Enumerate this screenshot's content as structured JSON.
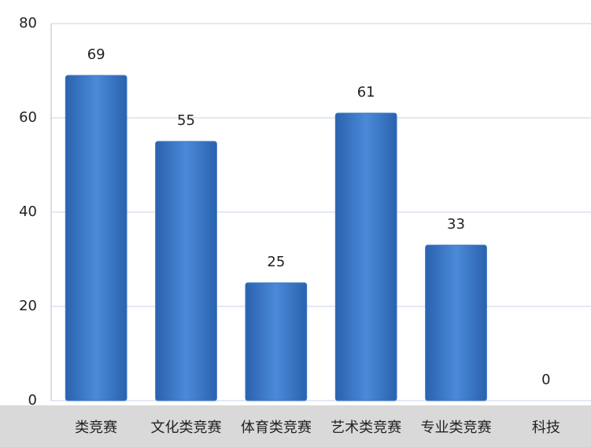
{
  "chart_data": {
    "type": "bar",
    "categories": [
      "类竞赛",
      "文化类竞赛",
      "体育类竞赛",
      "艺术类竞赛",
      "专业类竞赛",
      "科技"
    ],
    "values": [
      69,
      55,
      25,
      61,
      33,
      0
    ],
    "color": "#3b78c6",
    "ylim": [
      0,
      80
    ],
    "yticks": [
      0,
      20,
      40,
      60,
      80
    ],
    "grid": true
  }
}
